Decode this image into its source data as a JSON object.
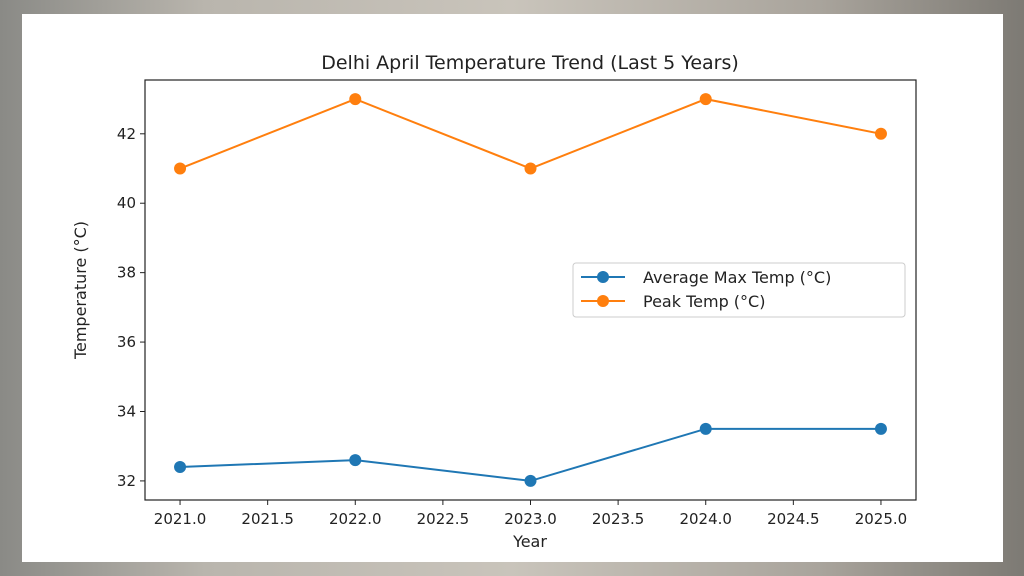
{
  "chart_data": {
    "type": "line",
    "title": "Delhi April Temperature Trend (Last 5 Years)",
    "xlabel": "Year",
    "ylabel": "Temperature (°C)",
    "x": [
      2021,
      2022,
      2023,
      2024,
      2025
    ],
    "xlim": [
      2020.8,
      2025.2
    ],
    "ylim": [
      31.45,
      43.55
    ],
    "xticks": [
      "2021.0",
      "2021.5",
      "2022.0",
      "2022.5",
      "2023.0",
      "2023.5",
      "2024.0",
      "2024.5",
      "2025.0"
    ],
    "yticks": [
      "32",
      "34",
      "36",
      "38",
      "40",
      "42"
    ],
    "grid": false,
    "legend_position": "center-right",
    "series": [
      {
        "name": "Average Max Temp (°C)",
        "color": "#1f77b4",
        "marker": "circle",
        "values": [
          32.4,
          32.6,
          32.0,
          33.5,
          33.5
        ]
      },
      {
        "name": "Peak Temp (°C)",
        "color": "#ff7f0e",
        "marker": "circle",
        "values": [
          41,
          43,
          41,
          43,
          42
        ]
      }
    ]
  }
}
